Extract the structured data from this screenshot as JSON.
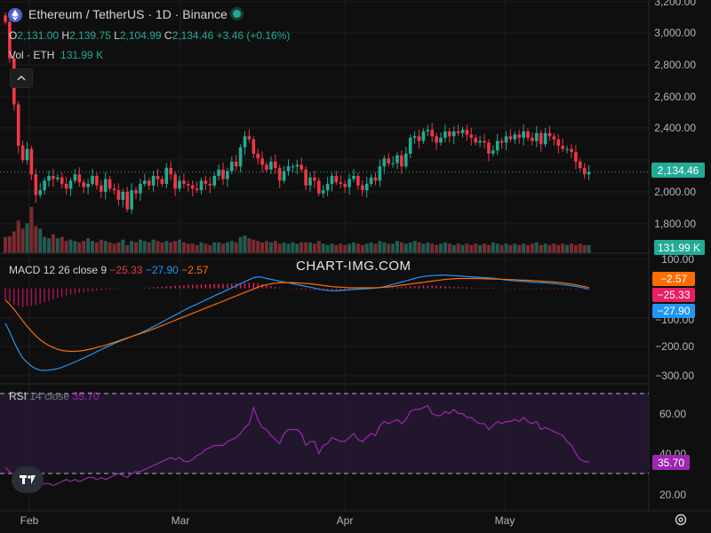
{
  "header": {
    "symbol": "Ethereum / TetherUS · 1D · Binance",
    "ohlc": {
      "o_label": "O",
      "o": "2,131.00",
      "h_label": "H",
      "h": "2,139.75",
      "l_label": "L",
      "l": "2,104.99",
      "c_label": "C",
      "c": "2,134.46",
      "change": "+3.46 (+0.16%)"
    },
    "volume_label": "Vol · ETH",
    "volume_value": "131.99 K"
  },
  "watermark": "CHART-IMG.COM",
  "macd_legend": {
    "name": "MACD",
    "params": "12 26 close 9",
    "hist": "−25.33",
    "macd": "−27.90",
    "signal": "−2.57"
  },
  "rsi_legend": {
    "name": "RSI",
    "params": "14 close",
    "value": "35.70"
  },
  "colors": {
    "up": "#22ab94",
    "down": "#f23645",
    "macd": "#2196f3",
    "signal": "#ff6d00",
    "rsi": "#7e57c2",
    "hist": "#e91e63"
  },
  "icons": {
    "logo": "ethereum-icon",
    "collapse": "chevron-up-icon",
    "brand": "tradingview-icon",
    "settings": "gear-icon"
  },
  "chart_data": {
    "type": "candlestick",
    "title": "Ethereum / TetherUS · 1D · Binance",
    "price_axis_ticks": [
      "1,800.00",
      "2,000.00",
      "2,200.00",
      "2,400.00",
      "2,600.00",
      "2,800.00",
      "3,000.00",
      "3,200.00"
    ],
    "last_price": "2,134.46",
    "last_volume": "131.99 K",
    "x_ticks": [
      "Feb",
      "Mar",
      "Apr",
      "May"
    ],
    "macd_axis_ticks": [
      "100.00",
      "−200.00",
      "−300.00"
    ],
    "macd_values": {
      "histogram": "−25.33",
      "macd": "−27.90",
      "signal": "−2.57"
    },
    "rsi_axis_ticks": [
      "20.00",
      "40.00",
      "60.00"
    ],
    "rsi_last": "35.70",
    "close": [
      3080,
      2850,
      2560,
      2300,
      2210,
      2280,
      2120,
      1990,
      2020,
      2080,
      2110,
      2090,
      2100,
      2060,
      2030,
      2080,
      2120,
      2070,
      2040,
      2060,
      2110,
      2050,
      2010,
      2090,
      2030,
      2020,
      1960,
      2010,
      1900,
      2020,
      2000,
      2060,
      2080,
      2050,
      2110,
      2090,
      2060,
      2160,
      2120,
      2030,
      2080,
      2060,
      2050,
      2030,
      2020,
      2080,
      2060,
      2050,
      2110,
      2150,
      2090,
      2140,
      2200,
      2170,
      2290,
      2360,
      2340,
      2250,
      2220,
      2180,
      2150,
      2200,
      2160,
      2080,
      2140,
      2170,
      2170,
      2180,
      2150,
      2050,
      2100,
      2080,
      2000,
      2020,
      2060,
      2110,
      2070,
      2060,
      2040,
      2090,
      2110,
      2050,
      2020,
      2060,
      2100,
      2080,
      2170,
      2220,
      2190,
      2190,
      2240,
      2170,
      2250,
      2350,
      2360,
      2330,
      2390,
      2400,
      2360,
      2320,
      2350,
      2390,
      2360,
      2390,
      2380,
      2400,
      2370,
      2350,
      2320,
      2330,
      2320,
      2250,
      2270,
      2330,
      2320,
      2360,
      2340,
      2370,
      2350,
      2390,
      2350,
      2330,
      2380,
      2310,
      2380,
      2360,
      2340,
      2300,
      2280,
      2280,
      2260,
      2200,
      2160,
      2120,
      2134
    ],
    "volume": [
      60,
      62,
      80,
      120,
      90,
      110,
      170,
      100,
      90,
      60,
      55,
      70,
      55,
      60,
      45,
      50,
      45,
      40,
      45,
      55,
      45,
      40,
      50,
      45,
      40,
      35,
      40,
      50,
      30,
      45,
      40,
      50,
      45,
      40,
      50,
      45,
      40,
      45,
      40,
      45,
      50,
      40,
      35,
      35,
      30,
      40,
      35,
      30,
      40,
      40,
      35,
      40,
      45,
      40,
      60,
      65,
      55,
      50,
      45,
      40,
      45,
      40,
      45,
      35,
      40,
      35,
      40,
      35,
      40,
      40,
      40,
      35,
      45,
      35,
      30,
      35,
      30,
      35,
      30,
      35,
      40,
      35,
      30,
      35,
      40,
      35,
      45,
      40,
      35,
      35,
      45,
      40,
      35,
      40,
      45,
      40,
      35,
      40,
      35,
      30,
      35,
      40,
      35,
      30,
      35,
      30,
      35,
      30,
      35,
      30,
      35,
      30,
      40,
      35,
      30,
      35,
      30,
      35,
      30,
      35,
      30,
      35,
      40,
      30,
      35,
      30,
      35,
      30,
      35,
      30,
      35,
      30,
      35,
      30,
      30
    ],
    "rsi": [
      33,
      31,
      29,
      27,
      26,
      25,
      24,
      23,
      24,
      25,
      25,
      24,
      25,
      26,
      27,
      26,
      27,
      26,
      27,
      28,
      28,
      27,
      28,
      27,
      28,
      29,
      30,
      29,
      28,
      30,
      31,
      31,
      32,
      33,
      34,
      35,
      36,
      37,
      38,
      37,
      38,
      36,
      36,
      37,
      39,
      40,
      42,
      43,
      44,
      44,
      44,
      46,
      47,
      48,
      50,
      53,
      55,
      63,
      57,
      53,
      52,
      49,
      47,
      45,
      50,
      52,
      52,
      52,
      50,
      44,
      46,
      46,
      40,
      44,
      45,
      48,
      47,
      46,
      46,
      48,
      50,
      47,
      46,
      48,
      50,
      49,
      54,
      56,
      55,
      56,
      57,
      55,
      57,
      61,
      62,
      62,
      63,
      64,
      60,
      59,
      59,
      61,
      60,
      62,
      60,
      60,
      58,
      58,
      56,
      55,
      55,
      52,
      54,
      56,
      55,
      56,
      56,
      57,
      56,
      58,
      56,
      55,
      56,
      52,
      53,
      52,
      51,
      50,
      49,
      46,
      44,
      40,
      37,
      36,
      35.7
    ],
    "macd": [
      -120,
      -150,
      -185,
      -215,
      -240,
      -255,
      -268,
      -277,
      -282,
      -283,
      -282,
      -280,
      -277,
      -272,
      -266,
      -260,
      -254,
      -247,
      -240,
      -233,
      -226,
      -218,
      -211,
      -204,
      -197,
      -190,
      -184,
      -178,
      -172,
      -166,
      -160,
      -154,
      -147,
      -140,
      -132,
      -124,
      -116,
      -108,
      -100,
      -92,
      -84,
      -76,
      -68,
      -61,
      -54,
      -47,
      -40,
      -33,
      -26,
      -19,
      -12,
      -5,
      2,
      9,
      16,
      23,
      30,
      37,
      40,
      38,
      34,
      31,
      28,
      25,
      22,
      19,
      16,
      13,
      10,
      7,
      4,
      1,
      -2,
      -5,
      -7,
      -8,
      -8,
      -7,
      -6,
      -5,
      -4,
      -3,
      -2,
      -1,
      0,
      1,
      3,
      6,
      10,
      14,
      18,
      22,
      26,
      30,
      34,
      38,
      41,
      43,
      44,
      45,
      46,
      46,
      45,
      44,
      43,
      42,
      41,
      40,
      39,
      38,
      37,
      36,
      35,
      33,
      31,
      29,
      27,
      26,
      25,
      24,
      23,
      22,
      21,
      20,
      19,
      18,
      17,
      15,
      13,
      11,
      9,
      7,
      4,
      1,
      -3,
      -8,
      -14,
      -20,
      -27.9
    ],
    "signal": [
      -40,
      -55,
      -72,
      -92,
      -112,
      -131,
      -148,
      -164,
      -177,
      -188,
      -197,
      -204,
      -210,
      -214,
      -216,
      -217,
      -217,
      -216,
      -214,
      -211,
      -208,
      -204,
      -200,
      -196,
      -191,
      -186,
      -181,
      -176,
      -171,
      -166,
      -161,
      -156,
      -151,
      -146,
      -140,
      -134,
      -128,
      -122,
      -116,
      -110,
      -104,
      -98,
      -92,
      -86,
      -80,
      -74,
      -68,
      -62,
      -56,
      -50,
      -44,
      -38,
      -32,
      -26,
      -20,
      -14,
      -8,
      -2,
      4,
      9,
      13,
      16,
      18,
      19,
      20,
      20,
      20,
      19,
      18,
      17,
      16,
      14,
      12,
      10,
      8,
      6,
      5,
      4,
      3,
      2,
      2,
      2,
      2,
      2,
      2,
      2,
      3,
      4,
      5,
      7,
      9,
      11,
      13,
      15,
      17,
      19,
      21,
      23,
      25,
      27,
      29,
      31,
      32,
      33,
      34,
      34,
      34,
      34,
      34,
      34,
      33,
      33,
      32,
      32,
      31,
      31,
      30,
      30,
      29,
      28,
      28,
      27,
      26,
      25,
      24,
      23,
      22,
      21,
      19,
      17,
      15,
      12,
      9,
      6,
      3,
      0,
      -2.57
    ]
  }
}
